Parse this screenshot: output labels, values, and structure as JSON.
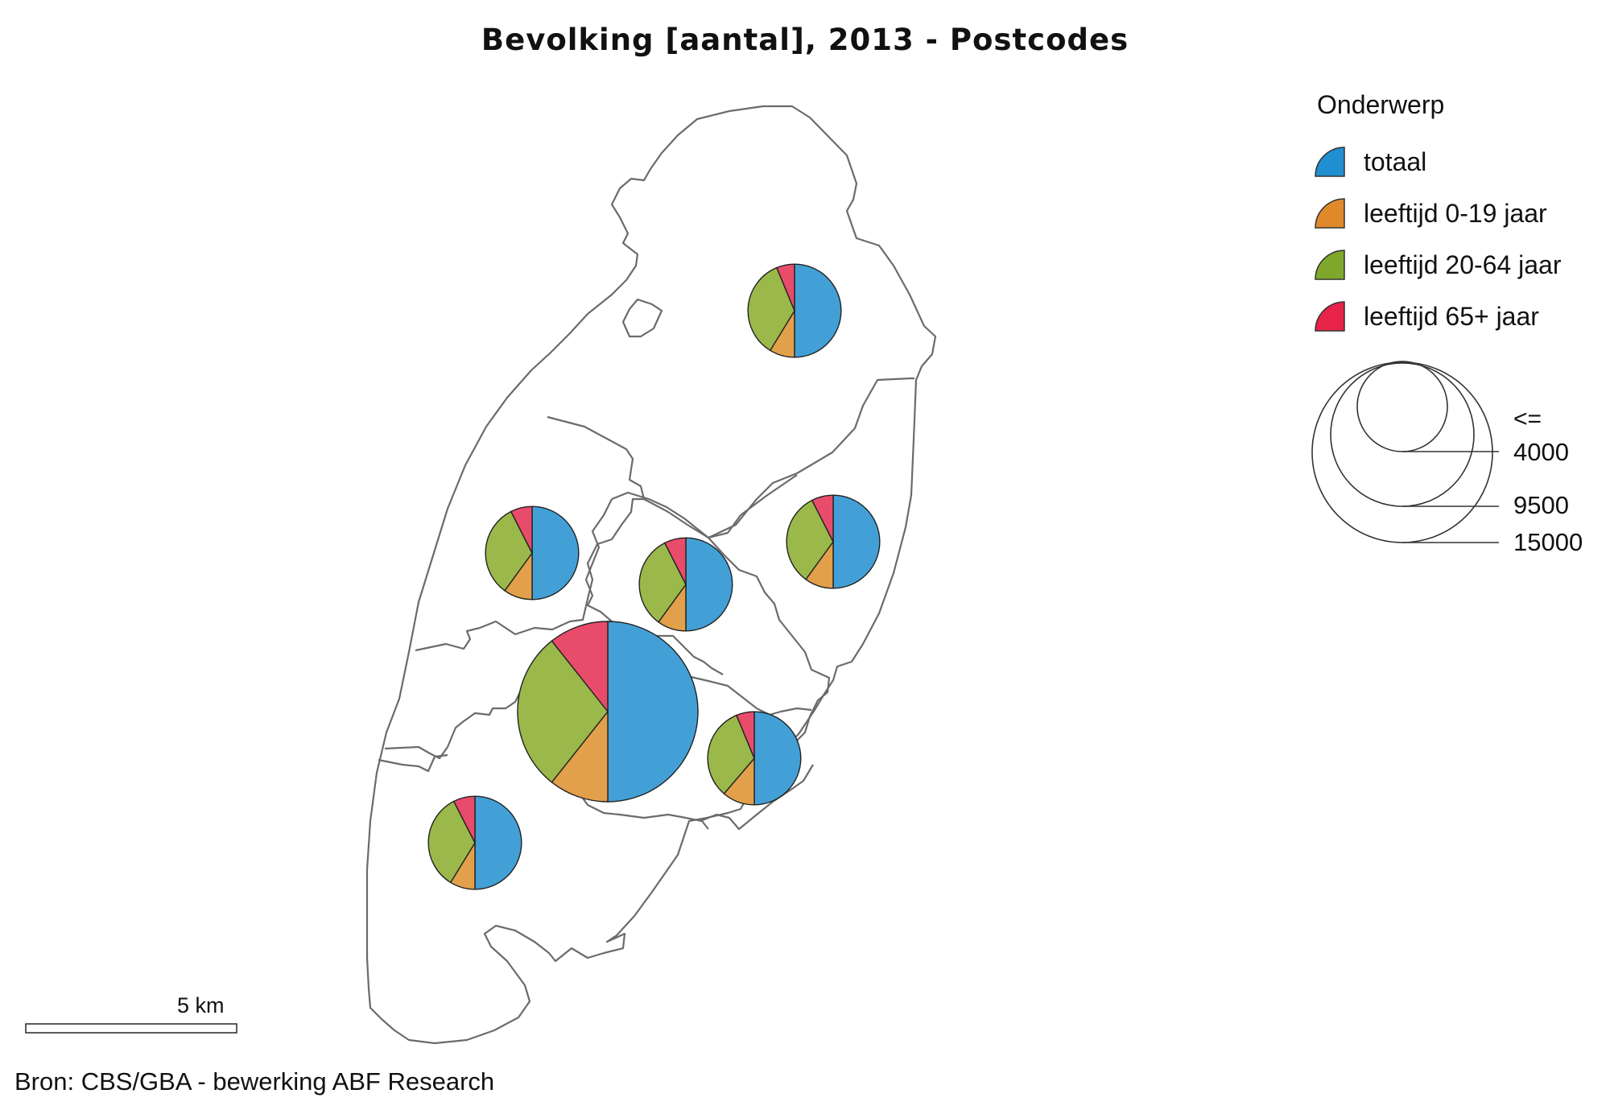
{
  "title": "Bevolking [aantal], 2013 - Postcodes",
  "colors": {
    "totaal": "#43a0d6",
    "age_0_19": "#e2a04a",
    "age_20_64": "#9ab94a",
    "age_65_plus": "#e94b6b",
    "outline": "#6b6b6b"
  },
  "legend": {
    "title": "Onderwerp",
    "items": [
      {
        "label": "totaal",
        "color": "#1f8fd0"
      },
      {
        "label": "leeftijd 0-19 jaar",
        "color": "#e0892a"
      },
      {
        "label": "leeftijd 20-64 jaar",
        "color": "#7fa82a"
      },
      {
        "label": "leeftijd 65+ jaar",
        "color": "#e8234a"
      }
    ],
    "size_header": "<=",
    "size_values": [
      "4000",
      "9500",
      "15000"
    ]
  },
  "scale_bar": {
    "label": "5 km"
  },
  "source": "Bron: CBS/GBA - bewerking ABF Research",
  "chart_data": {
    "type": "pie",
    "description_units": "inhabitants per postcode area; each pie split: totaal (half), 0-19, 20-64, 65+",
    "series_names": [
      "totaal",
      "leeftijd 0-19 jaar",
      "leeftijd 20-64 jaar",
      "leeftijd 65+ jaar"
    ],
    "areas": [
      {
        "id": "north",
        "total": 4000,
        "age_0_19": 700,
        "age_20_64": 2800,
        "age_65_plus": 500
      },
      {
        "id": "west-mid",
        "total": 4000,
        "age_0_19": 800,
        "age_20_64": 2600,
        "age_65_plus": 600
      },
      {
        "id": "center",
        "total": 4000,
        "age_0_19": 800,
        "age_20_64": 2600,
        "age_65_plus": 600
      },
      {
        "id": "east",
        "total": 4000,
        "age_0_19": 800,
        "age_20_64": 2600,
        "age_65_plus": 600
      },
      {
        "id": "city",
        "total": 15000,
        "age_0_19": 3200,
        "age_20_64": 8600,
        "age_65_plus": 3200
      },
      {
        "id": "south-east",
        "total": 4000,
        "age_0_19": 900,
        "age_20_64": 2600,
        "age_65_plus": 500
      },
      {
        "id": "south-west",
        "total": 4000,
        "age_0_19": 700,
        "age_20_64": 2700,
        "age_65_plus": 600
      }
    ]
  }
}
